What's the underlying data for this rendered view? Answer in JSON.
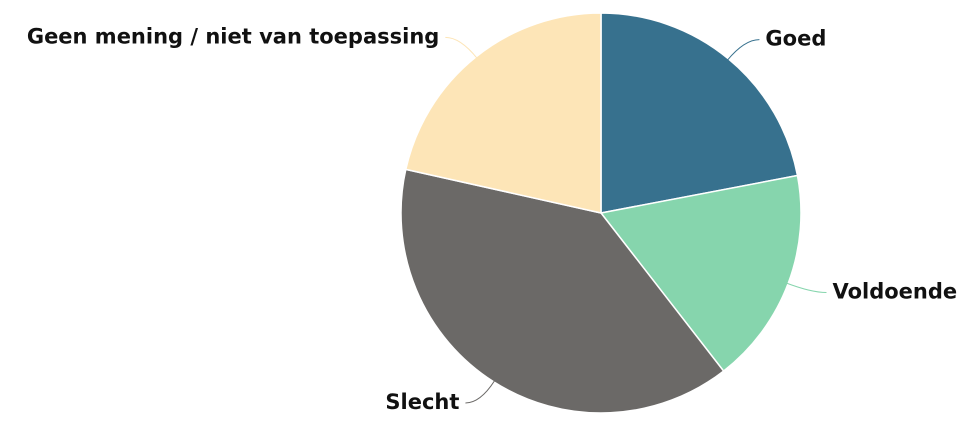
{
  "chart_data": {
    "type": "pie",
    "categories": [
      "Goed",
      "Voldoende",
      "Slecht",
      "Geen mening / niet van toepassing"
    ],
    "values": [
      22,
      17.5,
      39,
      21.5
    ],
    "colors": [
      "#37718e",
      "#86d5ad",
      "#6b6967",
      "#fde5b7"
    ]
  }
}
